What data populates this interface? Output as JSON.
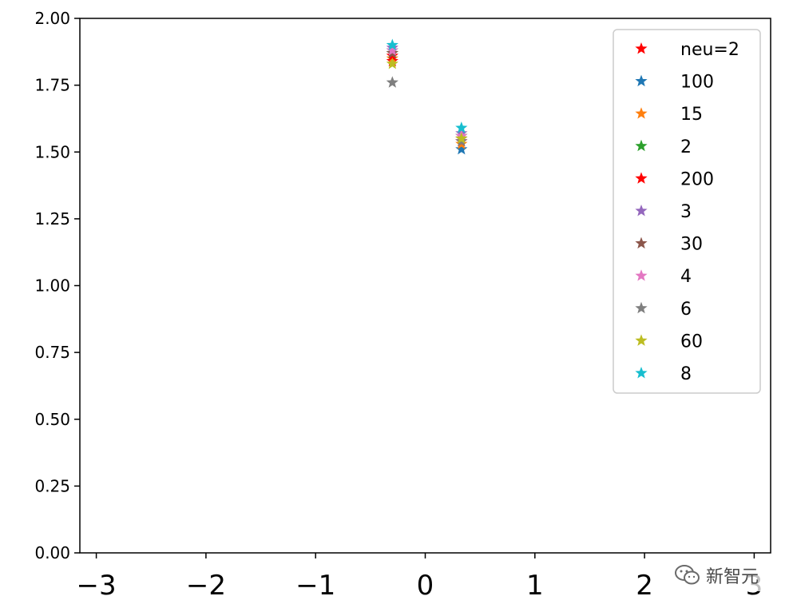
{
  "chart_data": {
    "type": "scatter",
    "marker": "star",
    "xlim": [
      -3.15,
      3.15
    ],
    "ylim": [
      0,
      2
    ],
    "xticks": [
      -3,
      -2,
      -1,
      0,
      1,
      2,
      3
    ],
    "xtick_labels": [
      "−3",
      "−2",
      "−1",
      "0",
      "1",
      "2",
      "3"
    ],
    "yticks": [
      0,
      0.25,
      0.5,
      0.75,
      1.0,
      1.25,
      1.5,
      1.75,
      2.0
    ],
    "ytick_labels": [
      "0.00",
      "0.25",
      "0.50",
      "0.75",
      "1.00",
      "1.25",
      "1.50",
      "1.75",
      "2.00"
    ],
    "grid": false,
    "legend_position": "top-right",
    "series": [
      {
        "name": "neu=2",
        "color": "#ff0000",
        "points": [
          [
            -0.3,
            1.84
          ],
          [
            0.33,
            1.55
          ]
        ]
      },
      {
        "name": "100",
        "color": "#1f77b4",
        "points": [
          [
            -0.3,
            1.88
          ],
          [
            0.33,
            1.51
          ]
        ]
      },
      {
        "name": "15",
        "color": "#ff7f0e",
        "points": [
          [
            -0.3,
            1.85
          ],
          [
            0.33,
            1.53
          ]
        ]
      },
      {
        "name": "2",
        "color": "#2ca02c",
        "points": [
          [
            -0.3,
            1.87
          ],
          [
            0.33,
            1.56
          ]
        ]
      },
      {
        "name": "200",
        "color": "#ff0000",
        "points": [
          [
            -0.3,
            1.86
          ],
          [
            0.33,
            1.54
          ]
        ]
      },
      {
        "name": "3",
        "color": "#9467bd",
        "points": [
          [
            -0.3,
            1.89
          ],
          [
            0.33,
            1.57
          ]
        ]
      },
      {
        "name": "30",
        "color": "#8c564b",
        "points": [
          [
            -0.3,
            1.87
          ],
          [
            0.33,
            1.55
          ]
        ]
      },
      {
        "name": "4",
        "color": "#e377c2",
        "points": [
          [
            -0.3,
            1.88
          ],
          [
            0.33,
            1.56
          ]
        ]
      },
      {
        "name": "6",
        "color": "#7f7f7f",
        "points": [
          [
            -0.3,
            1.76
          ],
          [
            0.33,
            1.54
          ]
        ]
      },
      {
        "name": "60",
        "color": "#bcbd22",
        "points": [
          [
            -0.3,
            1.83
          ],
          [
            0.33,
            1.55
          ]
        ]
      },
      {
        "name": "8",
        "color": "#17becf",
        "points": [
          [
            -0.3,
            1.9
          ],
          [
            0.33,
            1.59
          ]
        ]
      }
    ]
  },
  "watermark": {
    "text": "新智元",
    "icon": "wechat-icon"
  }
}
